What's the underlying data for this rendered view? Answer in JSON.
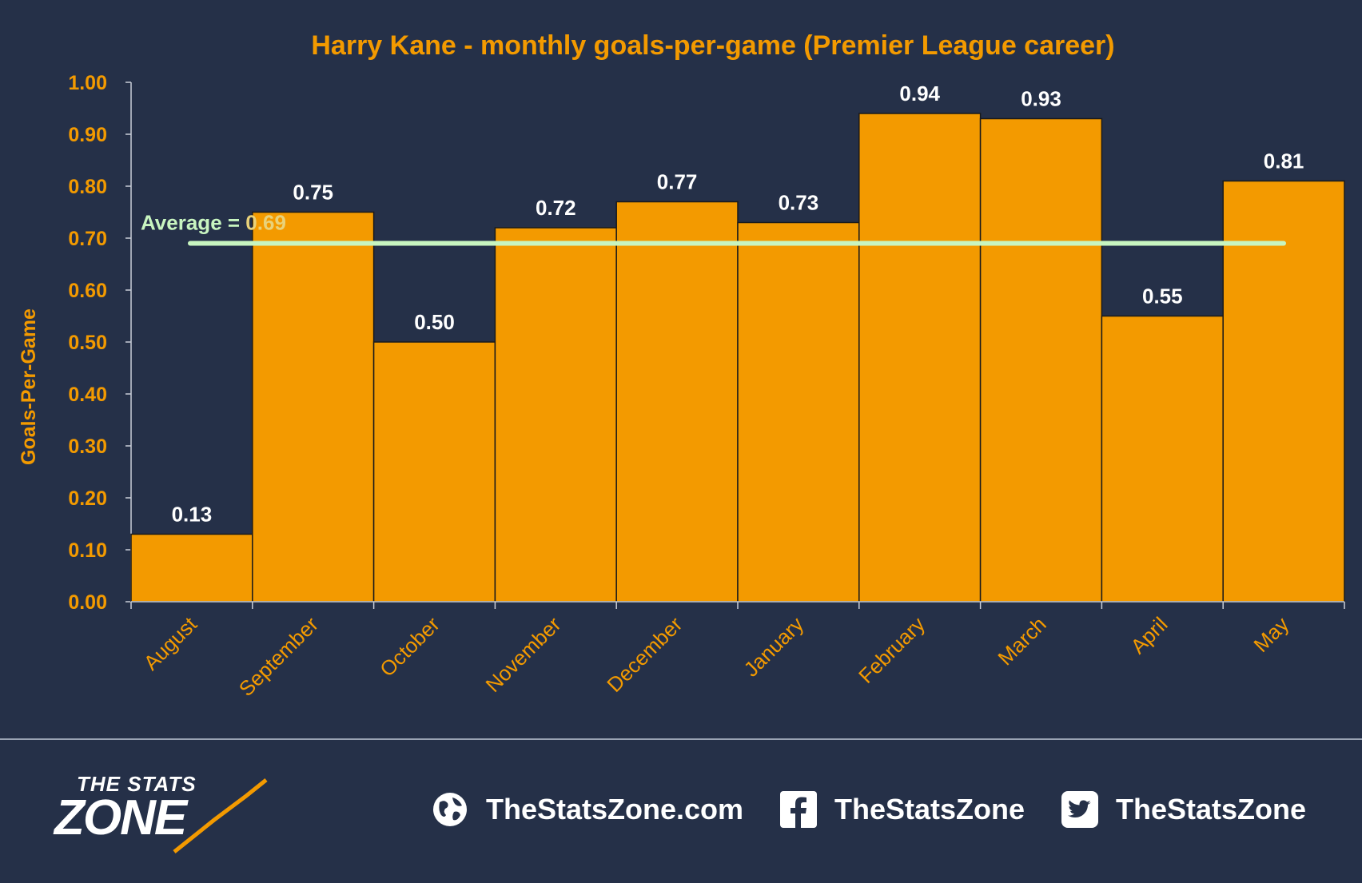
{
  "chart_data": {
    "type": "bar",
    "title": "Harry Kane - monthly goals-per-game (Premier League career)",
    "ylabel": "Goals-Per-Game",
    "xlabel": "",
    "categories": [
      "August",
      "September",
      "October",
      "November",
      "December",
      "January",
      "February",
      "March",
      "April",
      "May"
    ],
    "values": [
      0.13,
      0.75,
      0.5,
      0.72,
      0.77,
      0.73,
      0.94,
      0.93,
      0.55,
      0.81
    ],
    "ylim": [
      0,
      1.0
    ],
    "yticks": [
      "0.00",
      "0.10",
      "0.20",
      "0.30",
      "0.40",
      "0.50",
      "0.60",
      "0.70",
      "0.80",
      "0.90",
      "1.00"
    ],
    "average": {
      "label": "Average = ",
      "value_label": "0.69",
      "value": 0.69
    },
    "grid": false,
    "colors": {
      "bar": "#f39a00",
      "average_line": "#c8f5c0",
      "accent": "#f39a00",
      "background": "#253048"
    }
  },
  "footer": {
    "logo_top": "THE STATS",
    "logo_main": "ZONE",
    "website": "TheStatsZone.com",
    "facebook": "TheStatsZone",
    "twitter": "TheStatsZone",
    "icons": [
      "globe-icon",
      "facebook-icon",
      "twitter-icon"
    ]
  }
}
